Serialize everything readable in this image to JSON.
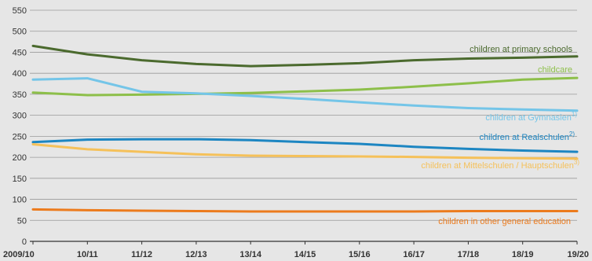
{
  "chart_data": {
    "type": "line",
    "title": "",
    "xlabel": "",
    "ylabel": "",
    "ylim": [
      0,
      550
    ],
    "yticks": [
      0,
      50,
      100,
      150,
      200,
      250,
      300,
      350,
      400,
      450,
      500,
      550
    ],
    "grid": "horizontal",
    "categories": [
      "2009/10",
      "10/11",
      "11/12",
      "12/13",
      "13/14",
      "14/15",
      "15/16",
      "16/17",
      "17/18",
      "18/19",
      "19/20"
    ],
    "series": [
      {
        "name": "children at primary schools",
        "sup": "",
        "color": "#4b6a2e",
        "values": [
          465,
          445,
          431,
          422,
          417,
          420,
          424,
          431,
          435,
          437,
          440
        ]
      },
      {
        "name": "childcare",
        "sup": "",
        "color": "#8dbf4a",
        "values": [
          354,
          348,
          349,
          351,
          353,
          357,
          361,
          368,
          376,
          385,
          389
        ]
      },
      {
        "name": "children at Gymnasien",
        "sup": "1)",
        "color": "#74c5e8",
        "values": [
          385,
          388,
          356,
          352,
          346,
          339,
          331,
          323,
          317,
          314,
          311
        ]
      },
      {
        "name": "children at Realschulen",
        "sup": "2)",
        "color": "#1d86c2",
        "values": [
          236,
          242,
          243,
          243,
          241,
          236,
          232,
          225,
          220,
          216,
          213
        ]
      },
      {
        "name": "children at Mittelschulen / Hauptschulen",
        "sup": "3)",
        "color": "#f5c15a",
        "values": [
          231,
          219,
          213,
          207,
          204,
          203,
          202,
          201,
          199,
          198,
          197
        ]
      },
      {
        "name": "children in other general education",
        "sup": "",
        "color": "#ec7b1d",
        "values": [
          76,
          74,
          73,
          72,
          71,
          71,
          71,
          71,
          72,
          72,
          72
        ]
      }
    ]
  }
}
